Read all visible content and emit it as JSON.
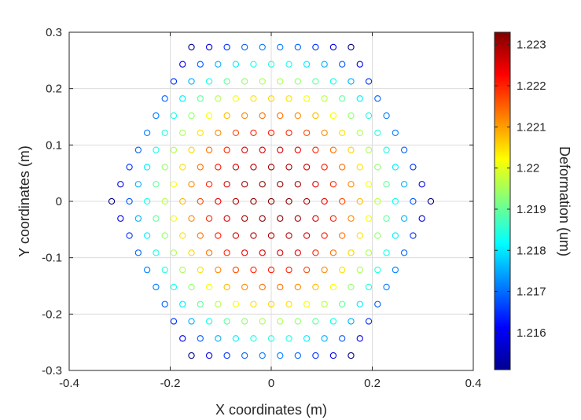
{
  "chart_data": {
    "type": "scatter",
    "xlabel": "X coordinates (m)",
    "ylabel": "Y coordinates (m)",
    "colorbar_label": "Deformation (um)",
    "colormap": "jet",
    "xlim": [
      -0.4,
      0.4
    ],
    "ylim": [
      -0.3,
      0.3
    ],
    "x_ticks": [
      -0.4,
      -0.2,
      0,
      0.2,
      0.4
    ],
    "x_tick_labels": [
      "-0.4",
      "-0.2",
      "0",
      "0.2",
      "0.4"
    ],
    "y_ticks": [
      -0.3,
      -0.2,
      -0.1,
      0,
      0.1,
      0.2,
      0.3
    ],
    "y_tick_labels": [
      "-0.3",
      "-0.2",
      "-0.1",
      "0",
      "0.1",
      "0.2",
      "0.3"
    ],
    "clim": [
      1.2151,
      1.2233
    ],
    "colorbar_ticks": [
      1.216,
      1.217,
      1.218,
      1.219,
      1.22,
      1.221,
      1.222,
      1.223
    ],
    "colorbar_tick_labels": [
      "1.216",
      "1.217",
      "1.218",
      "1.219",
      "1.22",
      "1.221",
      "1.222",
      "1.223"
    ],
    "grid": true,
    "marker": "open-circle",
    "point_layout": {
      "shape": "hexagonal array",
      "pitch_x": 0.0351,
      "row_spacing": 0.0304,
      "rows": 19,
      "max_row_offset": 9,
      "min_value_at_corners": 1.2151,
      "max_value_at_center": 1.2233
    }
  }
}
